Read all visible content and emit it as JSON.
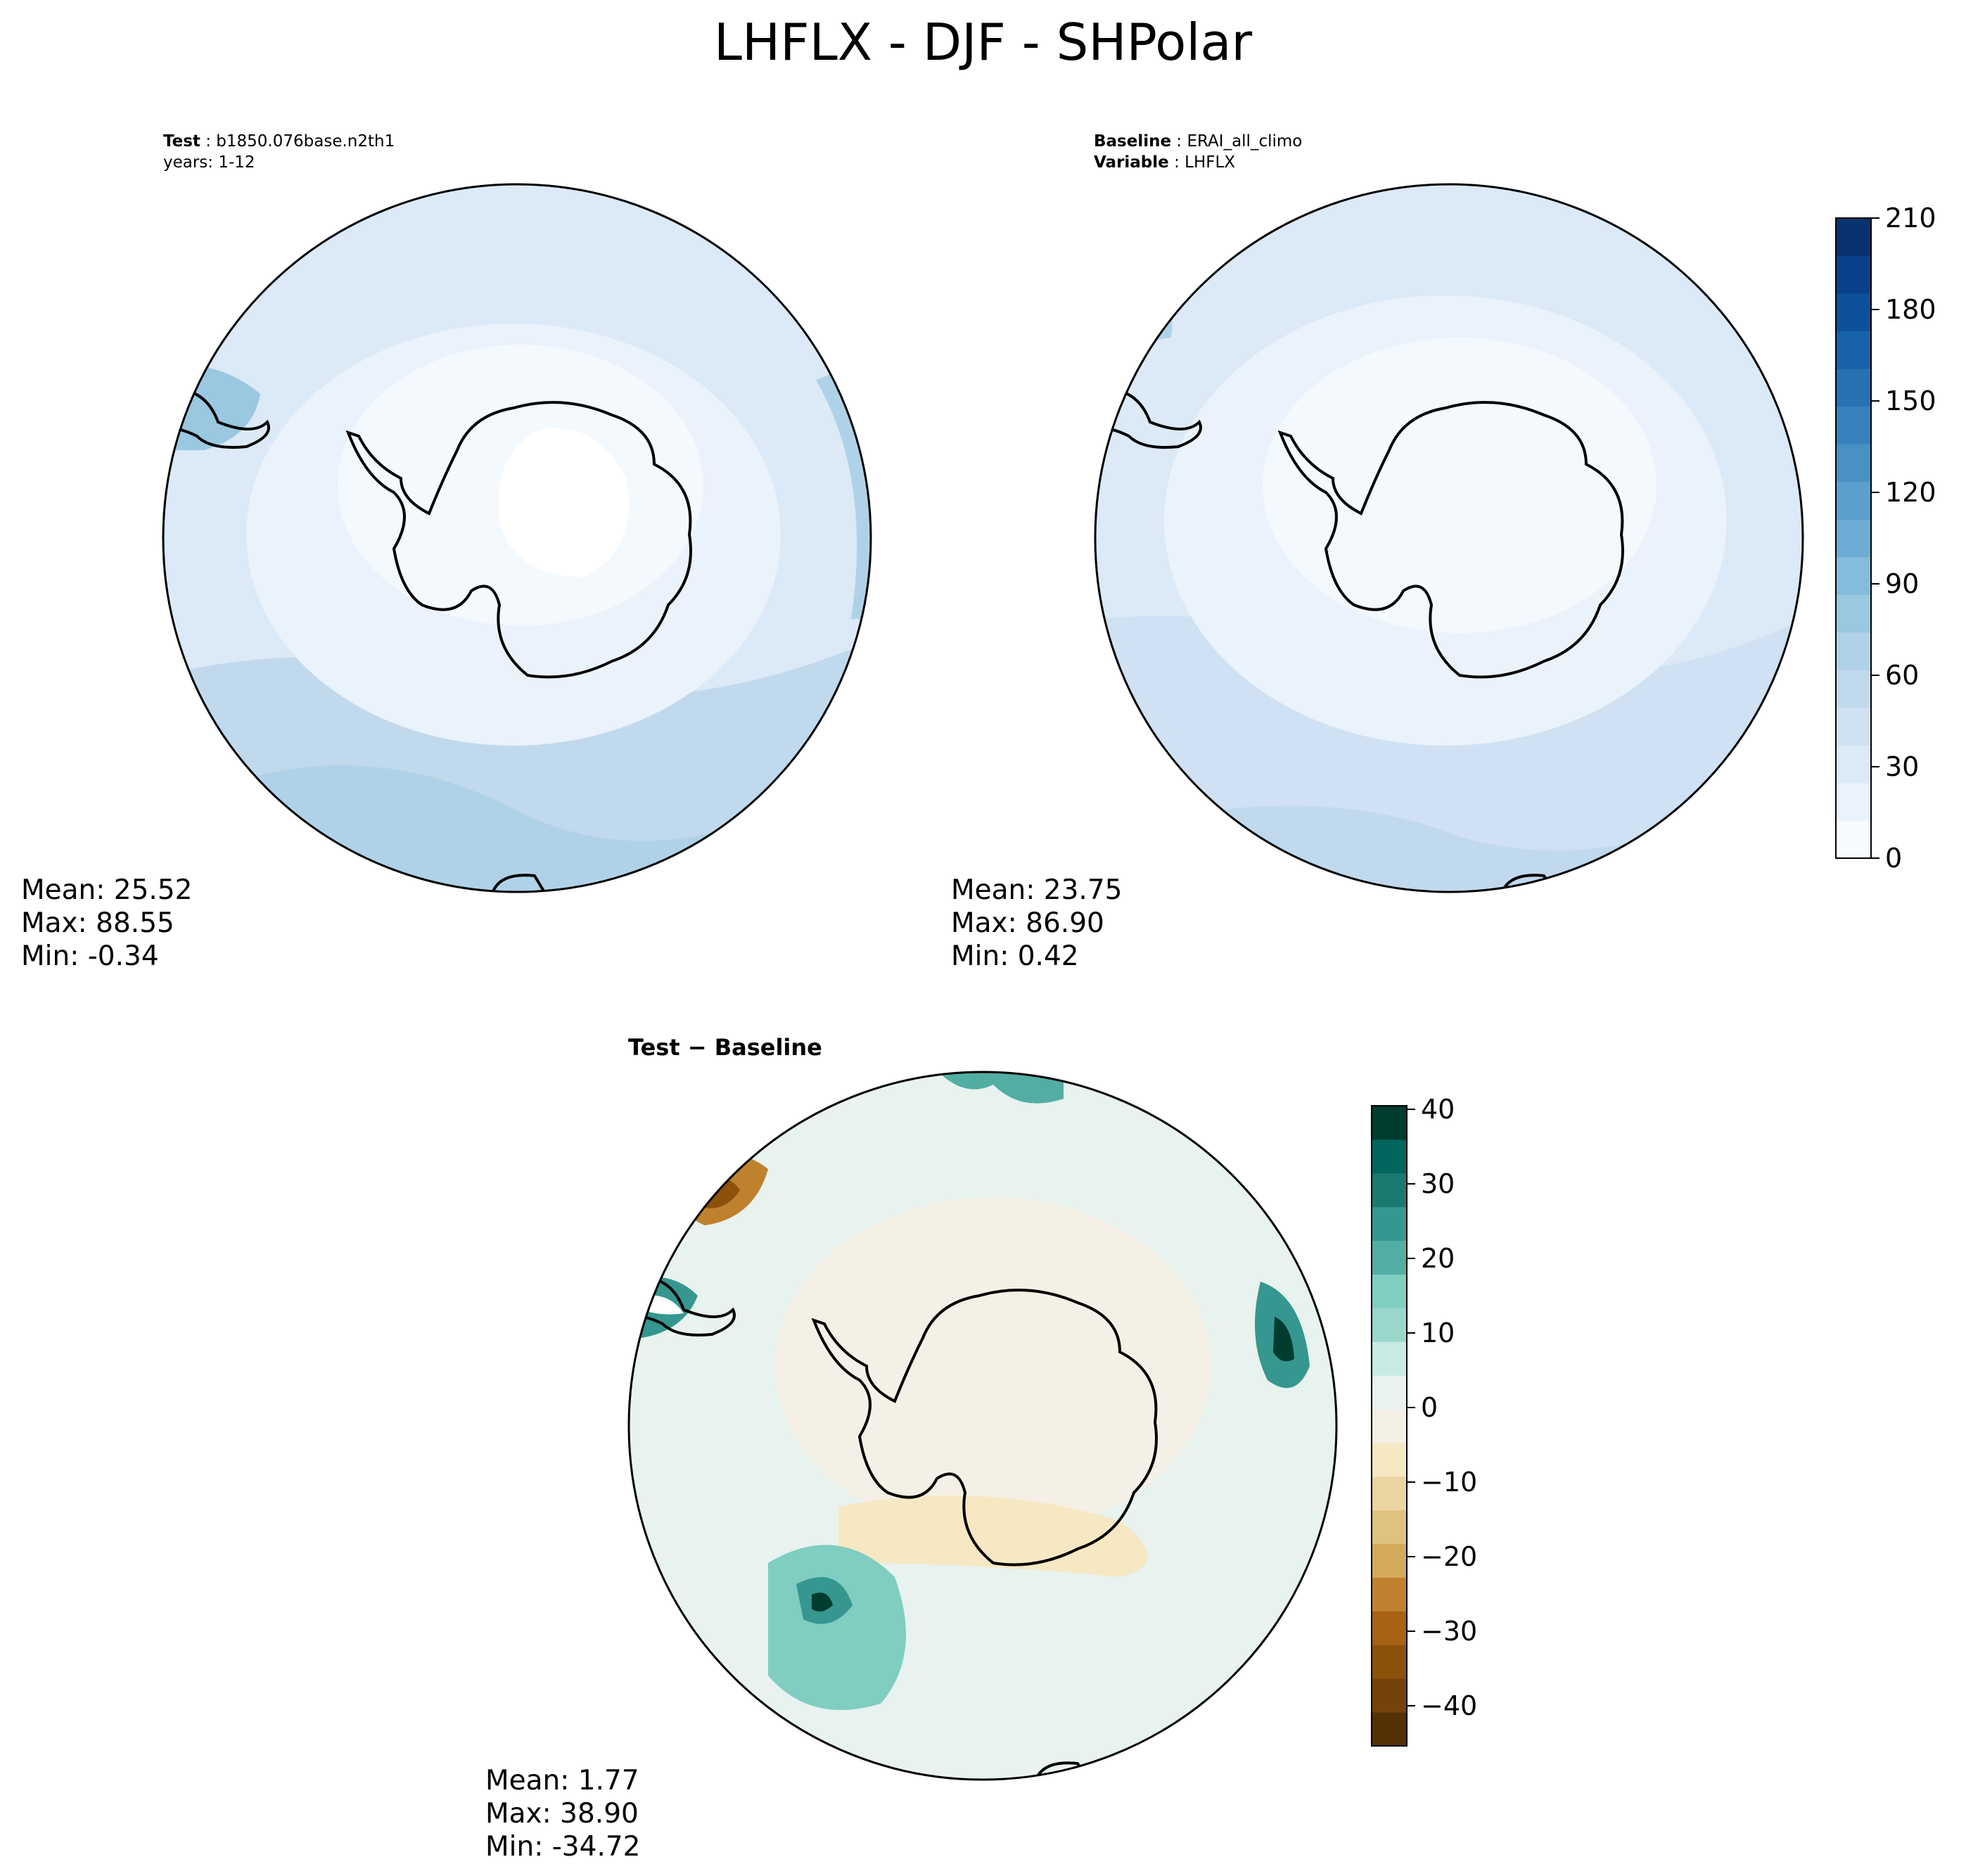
{
  "figure": {
    "title": "LHFLX - DJF - SHPolar"
  },
  "test_panel": {
    "label_key": "Test",
    "label_value": "b1850.076base.n2th1",
    "years": "years: 1-12",
    "stats": {
      "mean": "Mean: 25.52",
      "max": "Max: 88.55",
      "min": "Min: -0.34"
    }
  },
  "baseline_panel": {
    "label_key": "Baseline",
    "label_value": "ERAI_all_climo",
    "variable_key": "Variable",
    "variable_value": "LHFLX",
    "stats": {
      "mean": "Mean: 23.75",
      "max": "Max: 86.90",
      "min": "Min:  0.42"
    }
  },
  "diff_panel": {
    "title": "Test − Baseline",
    "stats": {
      "mean": "Mean:  1.77",
      "max": "Max: 38.90",
      "min": "Min: -34.72"
    }
  },
  "colorbars": {
    "main": {
      "ticks": [
        "210",
        "180",
        "150",
        "120",
        "90",
        "60",
        "30",
        "0"
      ],
      "colors": [
        "#f7fbff",
        "#eaf2fb",
        "#dce9f6",
        "#cfe1f2",
        "#c1d9ed",
        "#b0d2e8",
        "#9ac8e1",
        "#84bcdb",
        "#6dadd5",
        "#5a9fce",
        "#4891c5",
        "#3682bd",
        "#2672b2",
        "#1762a8",
        "#0c5199",
        "#08418a",
        "#083270"
      ]
    },
    "diff": {
      "ticks": [
        "40",
        "30",
        "20",
        "10",
        "0",
        "−10",
        "−20",
        "−30",
        "−40"
      ],
      "colors": [
        "#543005",
        "#744309",
        "#8c510a",
        "#a76212",
        "#bf812d",
        "#d3aa5c",
        "#dfc27d",
        "#ebd5a2",
        "#f6e8c3",
        "#f5f0e5",
        "#e8f2ef",
        "#c7eae5",
        "#9bd6cc",
        "#80cdc1",
        "#52aea3",
        "#35978f",
        "#1a7a70",
        "#01665e",
        "#003c30"
      ]
    }
  }
}
